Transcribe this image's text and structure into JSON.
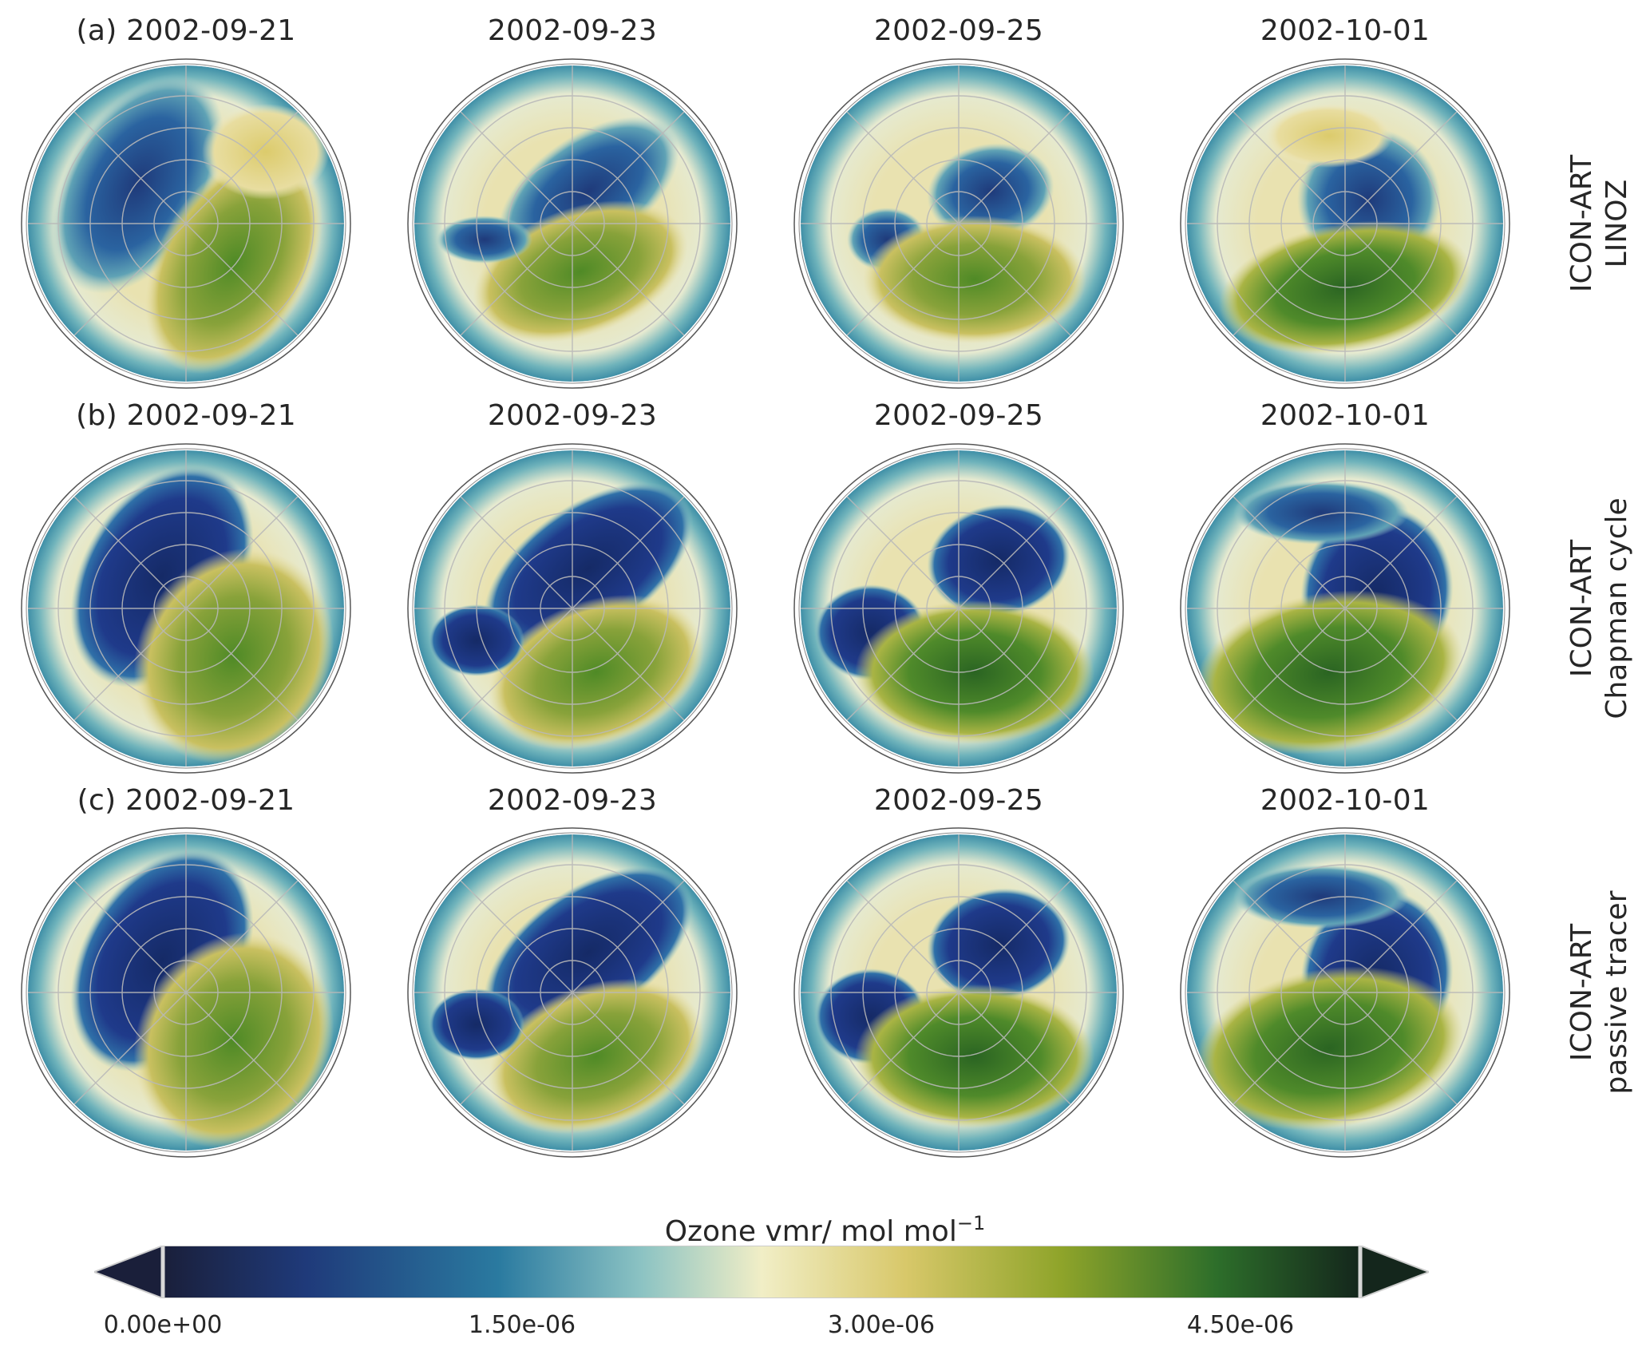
{
  "rows": [
    {
      "label_lines": [
        "ICON-ART",
        "LINOZ"
      ],
      "panels": [
        {
          "title": "(a) 2002-09-21"
        },
        {
          "title": "2002-09-23"
        },
        {
          "title": "2002-09-25"
        },
        {
          "title": "2002-10-01"
        }
      ]
    },
    {
      "label_lines": [
        "ICON-ART",
        "Chapman cycle"
      ],
      "panels": [
        {
          "title": "(b) 2002-09-21"
        },
        {
          "title": "2002-09-23"
        },
        {
          "title": "2002-09-25"
        },
        {
          "title": "2002-10-01"
        }
      ]
    },
    {
      "label_lines": [
        "ICON-ART",
        "passive tracer"
      ],
      "panels": [
        {
          "title": "(c) 2002-09-21"
        },
        {
          "title": "2002-09-23"
        },
        {
          "title": "2002-09-25"
        },
        {
          "title": "2002-10-01"
        }
      ]
    }
  ],
  "colorbar": {
    "title": "Ozone vmr/ mol mol",
    "title_superscript": "−1",
    "ticks": [
      "0.00e+00",
      "1.50e-06",
      "3.00e-06",
      "4.50e-06"
    ],
    "tick_values": [
      0,
      1.5e-06,
      3e-06,
      4.5e-06
    ],
    "range": [
      0,
      5e-06
    ],
    "extend": "both",
    "colors": [
      "#1a1f3a",
      "#1f3a7a",
      "#2a7aa0",
      "#8cc3c3",
      "#f1eec6",
      "#d8c86a",
      "#8fa42a",
      "#2d6e2a",
      "#14261c"
    ]
  }
}
